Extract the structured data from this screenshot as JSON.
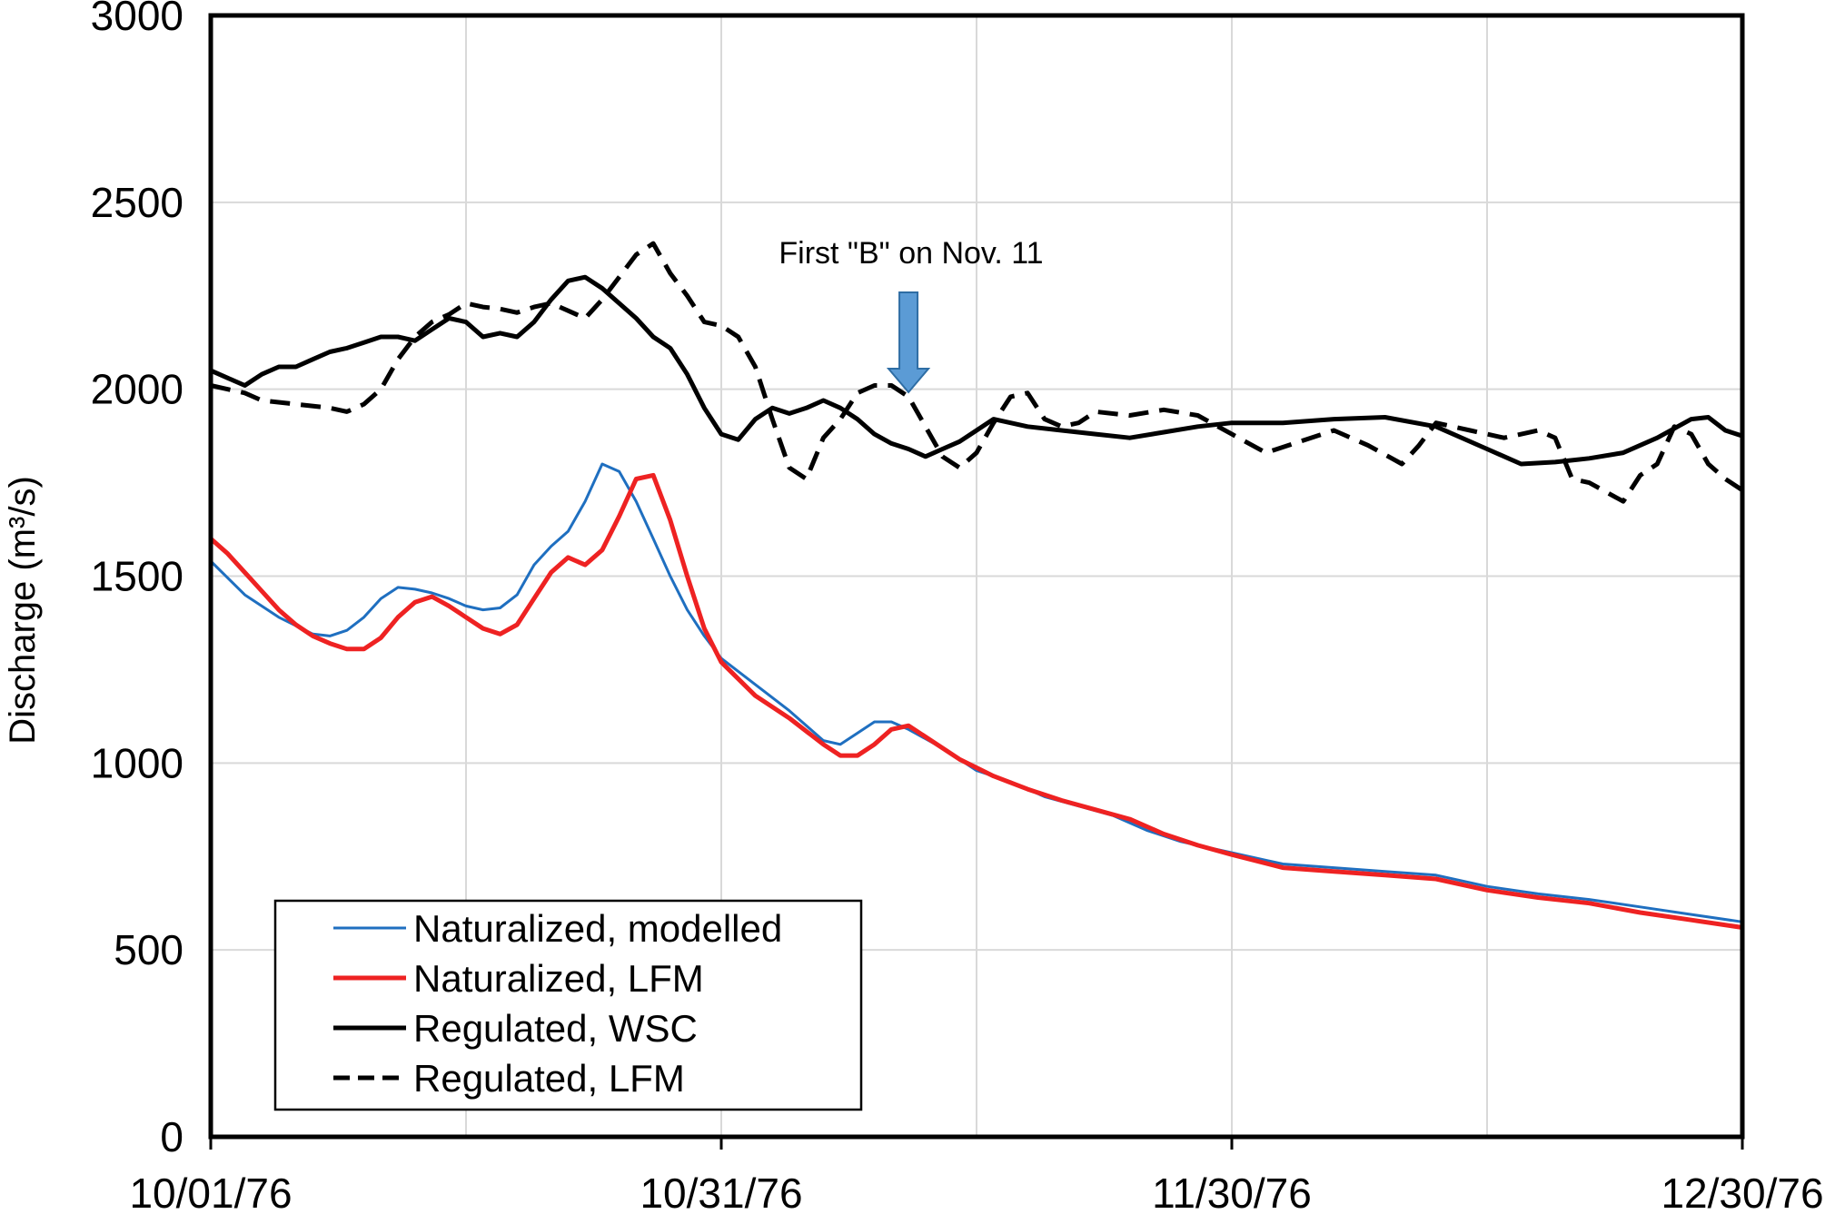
{
  "chart_data": {
    "type": "line",
    "title": "",
    "xlabel": "",
    "ylabel": "Discharge  (m³/s)",
    "ylim": [
      0,
      3000
    ],
    "y_ticks": [
      "0",
      "500",
      "1000",
      "1500",
      "2000",
      "2500",
      "3000"
    ],
    "x_ticks": [
      "10/01/76",
      "10/31/76",
      "11/30/76",
      "12/30/76"
    ],
    "xlim": [
      "10/01/76",
      "12/30/76"
    ],
    "grid": true,
    "legend_position": "bottom-left",
    "annotation": {
      "text": "First \"B\" on Nov. 11",
      "arrow_color": "#5b9bd5",
      "arrow_x": "11/11/76"
    },
    "series": [
      {
        "name": "Naturalized, modelled",
        "color": "#1f6fc0",
        "style": "solid",
        "points": [
          [
            "10/01/76",
            1540
          ],
          [
            "10/03/76",
            1450
          ],
          [
            "10/05/76",
            1390
          ],
          [
            "10/07/76",
            1345
          ],
          [
            "10/08/76",
            1340
          ],
          [
            "10/09/76",
            1355
          ],
          [
            "10/10/76",
            1390
          ],
          [
            "10/11/76",
            1440
          ],
          [
            "10/12/76",
            1470
          ],
          [
            "10/13/76",
            1465
          ],
          [
            "10/14/76",
            1455
          ],
          [
            "10/15/76",
            1440
          ],
          [
            "10/16/76",
            1420
          ],
          [
            "10/17/76",
            1410
          ],
          [
            "10/18/76",
            1415
          ],
          [
            "10/19/76",
            1450
          ],
          [
            "10/20/76",
            1530
          ],
          [
            "10/21/76",
            1580
          ],
          [
            "10/22/76",
            1620
          ],
          [
            "10/23/76",
            1700
          ],
          [
            "10/24/76",
            1800
          ],
          [
            "10/25/76",
            1780
          ],
          [
            "10/26/76",
            1700
          ],
          [
            "10/27/76",
            1600
          ],
          [
            "10/28/76",
            1500
          ],
          [
            "10/29/76",
            1410
          ],
          [
            "10/30/76",
            1340
          ],
          [
            "10/31/76",
            1280
          ],
          [
            "11/02/76",
            1210
          ],
          [
            "11/04/76",
            1140
          ],
          [
            "11/06/76",
            1060
          ],
          [
            "11/07/76",
            1050
          ],
          [
            "11/08/76",
            1080
          ],
          [
            "11/09/76",
            1110
          ],
          [
            "11/10/76",
            1110
          ],
          [
            "11/11/76",
            1090
          ],
          [
            "11/13/76",
            1040
          ],
          [
            "11/15/76",
            980
          ],
          [
            "11/17/76",
            950
          ],
          [
            "11/19/76",
            910
          ],
          [
            "11/21/76",
            885
          ],
          [
            "11/23/76",
            860
          ],
          [
            "11/25/76",
            820
          ],
          [
            "11/27/76",
            790
          ],
          [
            "11/30/76",
            760
          ],
          [
            "12/03/76",
            730
          ],
          [
            "12/06/76",
            720
          ],
          [
            "12/09/76",
            710
          ],
          [
            "12/12/76",
            700
          ],
          [
            "12/15/76",
            670
          ],
          [
            "12/18/76",
            650
          ],
          [
            "12/21/76",
            635
          ],
          [
            "12/24/76",
            615
          ],
          [
            "12/27/76",
            595
          ],
          [
            "12/30/76",
            575
          ]
        ]
      },
      {
        "name": "Naturalized, LFM",
        "color": "#ee2222",
        "style": "solid",
        "points": [
          [
            "10/01/76",
            1600
          ],
          [
            "10/02/76",
            1560
          ],
          [
            "10/03/76",
            1510
          ],
          [
            "10/04/76",
            1460
          ],
          [
            "10/05/76",
            1410
          ],
          [
            "10/06/76",
            1370
          ],
          [
            "10/07/76",
            1340
          ],
          [
            "10/08/76",
            1320
          ],
          [
            "10/09/76",
            1305
          ],
          [
            "10/10/76",
            1305
          ],
          [
            "10/11/76",
            1335
          ],
          [
            "10/12/76",
            1390
          ],
          [
            "10/13/76",
            1430
          ],
          [
            "10/14/76",
            1445
          ],
          [
            "10/15/76",
            1420
          ],
          [
            "10/16/76",
            1390
          ],
          [
            "10/17/76",
            1360
          ],
          [
            "10/18/76",
            1345
          ],
          [
            "10/19/76",
            1370
          ],
          [
            "10/20/76",
            1440
          ],
          [
            "10/21/76",
            1510
          ],
          [
            "10/22/76",
            1550
          ],
          [
            "10/23/76",
            1530
          ],
          [
            "10/24/76",
            1570
          ],
          [
            "10/25/76",
            1660
          ],
          [
            "10/26/76",
            1760
          ],
          [
            "10/27/76",
            1770
          ],
          [
            "10/28/76",
            1650
          ],
          [
            "10/29/76",
            1500
          ],
          [
            "10/30/76",
            1360
          ],
          [
            "10/31/76",
            1270
          ],
          [
            "11/02/76",
            1180
          ],
          [
            "11/04/76",
            1120
          ],
          [
            "11/06/76",
            1050
          ],
          [
            "11/07/76",
            1020
          ],
          [
            "11/08/76",
            1020
          ],
          [
            "11/09/76",
            1050
          ],
          [
            "11/10/76",
            1090
          ],
          [
            "11/11/76",
            1100
          ],
          [
            "11/12/76",
            1070
          ],
          [
            "11/14/76",
            1010
          ],
          [
            "11/16/76",
            965
          ],
          [
            "11/18/76",
            930
          ],
          [
            "11/20/76",
            900
          ],
          [
            "11/22/76",
            875
          ],
          [
            "11/24/76",
            850
          ],
          [
            "11/26/76",
            810
          ],
          [
            "11/28/76",
            780
          ],
          [
            "11/30/76",
            755
          ],
          [
            "12/03/76",
            720
          ],
          [
            "12/06/76",
            710
          ],
          [
            "12/09/76",
            700
          ],
          [
            "12/12/76",
            690
          ],
          [
            "12/15/76",
            660
          ],
          [
            "12/18/76",
            640
          ],
          [
            "12/21/76",
            625
          ],
          [
            "12/24/76",
            600
          ],
          [
            "12/27/76",
            580
          ],
          [
            "12/30/76",
            560
          ]
        ]
      },
      {
        "name": "Regulated, WSC",
        "color": "#000000",
        "style": "solid",
        "points": [
          [
            "10/01/76",
            2050
          ],
          [
            "10/02/76",
            2030
          ],
          [
            "10/03/76",
            2010
          ],
          [
            "10/04/76",
            2040
          ],
          [
            "10/05/76",
            2060
          ],
          [
            "10/06/76",
            2060
          ],
          [
            "10/07/76",
            2080
          ],
          [
            "10/08/76",
            2100
          ],
          [
            "10/09/76",
            2110
          ],
          [
            "10/10/76",
            2125
          ],
          [
            "10/11/76",
            2140
          ],
          [
            "10/12/76",
            2140
          ],
          [
            "10/13/76",
            2130
          ],
          [
            "10/14/76",
            2160
          ],
          [
            "10/15/76",
            2190
          ],
          [
            "10/16/76",
            2180
          ],
          [
            "10/17/76",
            2140
          ],
          [
            "10/18/76",
            2150
          ],
          [
            "10/19/76",
            2140
          ],
          [
            "10/20/76",
            2180
          ],
          [
            "10/21/76",
            2240
          ],
          [
            "10/22/76",
            2290
          ],
          [
            "10/23/76",
            2300
          ],
          [
            "10/24/76",
            2270
          ],
          [
            "10/25/76",
            2230
          ],
          [
            "10/26/76",
            2190
          ],
          [
            "10/27/76",
            2140
          ],
          [
            "10/28/76",
            2110
          ],
          [
            "10/29/76",
            2040
          ],
          [
            "10/30/76",
            1950
          ],
          [
            "10/31/76",
            1880
          ],
          [
            "11/01/76",
            1865
          ],
          [
            "11/02/76",
            1920
          ],
          [
            "11/03/76",
            1950
          ],
          [
            "11/04/76",
            1935
          ],
          [
            "11/05/76",
            1950
          ],
          [
            "11/06/76",
            1970
          ],
          [
            "11/07/76",
            1950
          ],
          [
            "11/08/76",
            1920
          ],
          [
            "11/09/76",
            1880
          ],
          [
            "11/10/76",
            1855
          ],
          [
            "11/11/76",
            1840
          ],
          [
            "11/12/76",
            1820
          ],
          [
            "11/13/76",
            1840
          ],
          [
            "11/14/76",
            1860
          ],
          [
            "11/15/76",
            1890
          ],
          [
            "11/16/76",
            1920
          ],
          [
            "11/17/76",
            1910
          ],
          [
            "11/18/76",
            1900
          ],
          [
            "11/20/76",
            1890
          ],
          [
            "11/22/76",
            1880
          ],
          [
            "11/24/76",
            1870
          ],
          [
            "11/26/76",
            1885
          ],
          [
            "11/28/76",
            1900
          ],
          [
            "11/30/76",
            1910
          ],
          [
            "12/03/76",
            1910
          ],
          [
            "12/06/76",
            1920
          ],
          [
            "12/09/76",
            1925
          ],
          [
            "12/12/76",
            1900
          ],
          [
            "12/15/76",
            1840
          ],
          [
            "12/17/76",
            1800
          ],
          [
            "12/19/76",
            1805
          ],
          [
            "12/21/76",
            1815
          ],
          [
            "12/23/76",
            1830
          ],
          [
            "12/25/76",
            1870
          ],
          [
            "12/27/76",
            1920
          ],
          [
            "12/28/76",
            1925
          ],
          [
            "12/29/76",
            1890
          ],
          [
            "12/30/76",
            1875
          ]
        ]
      },
      {
        "name": "Regulated, LFM",
        "color": "#000000",
        "style": "dashed",
        "points": [
          [
            "10/01/76",
            2010
          ],
          [
            "10/02/76",
            2000
          ],
          [
            "10/03/76",
            1990
          ],
          [
            "10/04/76",
            1970
          ],
          [
            "10/06/76",
            1960
          ],
          [
            "10/08/76",
            1950
          ],
          [
            "10/09/76",
            1940
          ],
          [
            "10/10/76",
            1960
          ],
          [
            "10/11/76",
            2000
          ],
          [
            "10/12/76",
            2080
          ],
          [
            "10/13/76",
            2140
          ],
          [
            "10/14/76",
            2180
          ],
          [
            "10/15/76",
            2200
          ],
          [
            "10/16/76",
            2230
          ],
          [
            "10/17/76",
            2220
          ],
          [
            "10/18/76",
            2215
          ],
          [
            "10/19/76",
            2205
          ],
          [
            "10/20/76",
            2220
          ],
          [
            "10/21/76",
            2230
          ],
          [
            "10/22/76",
            2210
          ],
          [
            "10/23/76",
            2190
          ],
          [
            "10/24/76",
            2240
          ],
          [
            "10/25/76",
            2300
          ],
          [
            "10/26/76",
            2360
          ],
          [
            "10/27/76",
            2390
          ],
          [
            "10/28/76",
            2310
          ],
          [
            "10/29/76",
            2250
          ],
          [
            "10/30/76",
            2180
          ],
          [
            "10/31/76",
            2170
          ],
          [
            "11/01/76",
            2140
          ],
          [
            "11/02/76",
            2060
          ],
          [
            "11/03/76",
            1920
          ],
          [
            "11/04/76",
            1790
          ],
          [
            "11/05/76",
            1760
          ],
          [
            "11/06/76",
            1870
          ],
          [
            "11/07/76",
            1920
          ],
          [
            "11/08/76",
            1990
          ],
          [
            "11/09/76",
            2010
          ],
          [
            "11/10/76",
            2010
          ],
          [
            "11/11/76",
            1980
          ],
          [
            "11/12/76",
            1900
          ],
          [
            "11/13/76",
            1820
          ],
          [
            "11/14/76",
            1790
          ],
          [
            "11/15/76",
            1830
          ],
          [
            "11/16/76",
            1910
          ],
          [
            "11/17/76",
            1980
          ],
          [
            "11/18/76",
            1990
          ],
          [
            "11/19/76",
            1920
          ],
          [
            "11/20/76",
            1900
          ],
          [
            "11/21/76",
            1910
          ],
          [
            "11/22/76",
            1940
          ],
          [
            "11/24/76",
            1930
          ],
          [
            "11/26/76",
            1945
          ],
          [
            "11/28/76",
            1930
          ],
          [
            "11/30/76",
            1880
          ],
          [
            "12/02/76",
            1830
          ],
          [
            "12/04/76",
            1860
          ],
          [
            "12/06/76",
            1890
          ],
          [
            "12/08/76",
            1850
          ],
          [
            "12/10/76",
            1800
          ],
          [
            "12/11/76",
            1850
          ],
          [
            "12/12/76",
            1910
          ],
          [
            "12/14/76",
            1890
          ],
          [
            "12/16/76",
            1870
          ],
          [
            "12/18/76",
            1890
          ],
          [
            "12/19/76",
            1870
          ],
          [
            "12/20/76",
            1760
          ],
          [
            "12/21/76",
            1750
          ],
          [
            "12/23/76",
            1700
          ],
          [
            "12/24/76",
            1770
          ],
          [
            "12/25/76",
            1800
          ],
          [
            "12/26/76",
            1900
          ],
          [
            "12/27/76",
            1880
          ],
          [
            "12/28/76",
            1800
          ],
          [
            "12/29/76",
            1760
          ],
          [
            "12/30/76",
            1730
          ]
        ]
      }
    ]
  }
}
